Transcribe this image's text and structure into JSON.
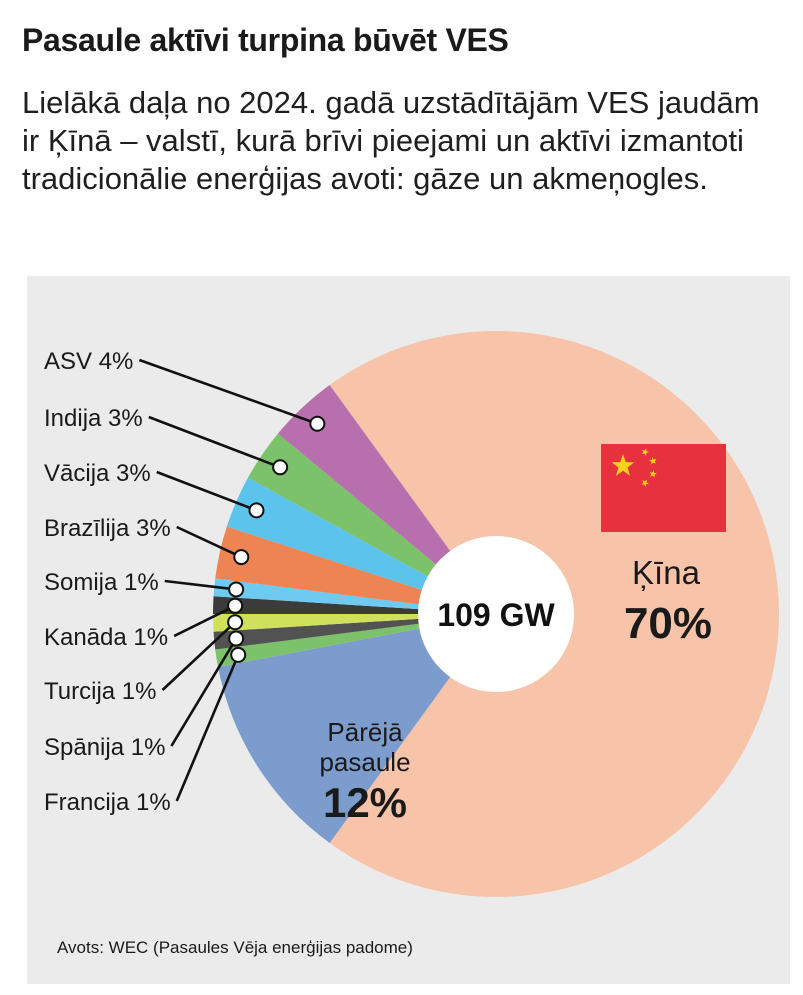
{
  "title": "Pasaule aktīvi turpina būvēt VES",
  "subtitle": "Lielākā daļa no 2024. gadā uzstādītājām VES jaudām ir Ķīnā – valstī, kurā brīvi pieejami un aktīvi izmantoti tradicionālie enerģijas avoti: gāze un akmeņogles.",
  "source": "Avots: WEC (Pasaules Vēja enerģijas padome)",
  "chart_data": {
    "type": "pie",
    "variant": "donut",
    "center_label": "109 GW",
    "unit": "%",
    "slices": [
      {
        "name": "Ķīna",
        "value": 70,
        "label": "Ķīna",
        "value_label": "70%",
        "color": "#f7c3a9"
      },
      {
        "name": "Pārējā pasaule",
        "value": 12,
        "label": "Pārējā pasaule",
        "value_label": "12%",
        "color": "#7b9ccd"
      },
      {
        "name": "Francija",
        "value": 1,
        "label": "Francija 1%",
        "color": "#7cc26a"
      },
      {
        "name": "Spānija",
        "value": 1,
        "label": "Spānija 1%",
        "color": "#525252"
      },
      {
        "name": "Turcija",
        "value": 1,
        "label": "Turcija 1%",
        "color": "#cfe05a"
      },
      {
        "name": "Kanāda",
        "value": 1,
        "label": "Kanāda 1%",
        "color": "#3b3b3b"
      },
      {
        "name": "Somija",
        "value": 1,
        "label": "Somija 1%",
        "color": "#6ecbef"
      },
      {
        "name": "Brazīlija",
        "value": 3,
        "label": "Brazīlija 3%",
        "color": "#ee8454"
      },
      {
        "name": "Vācija",
        "value": 3,
        "label": "Vācija 3%",
        "color": "#5cc3ec"
      },
      {
        "name": "Indija",
        "value": 3,
        "label": "Indija 3%",
        "color": "#7cc26a"
      },
      {
        "name": "ASV",
        "value": 4,
        "label": "ASV 4%",
        "color": "#b86fae"
      }
    ],
    "flag": {
      "country": "Ķīna",
      "colors": {
        "field": "#e8313f",
        "stars": "#f7d21b"
      }
    }
  }
}
